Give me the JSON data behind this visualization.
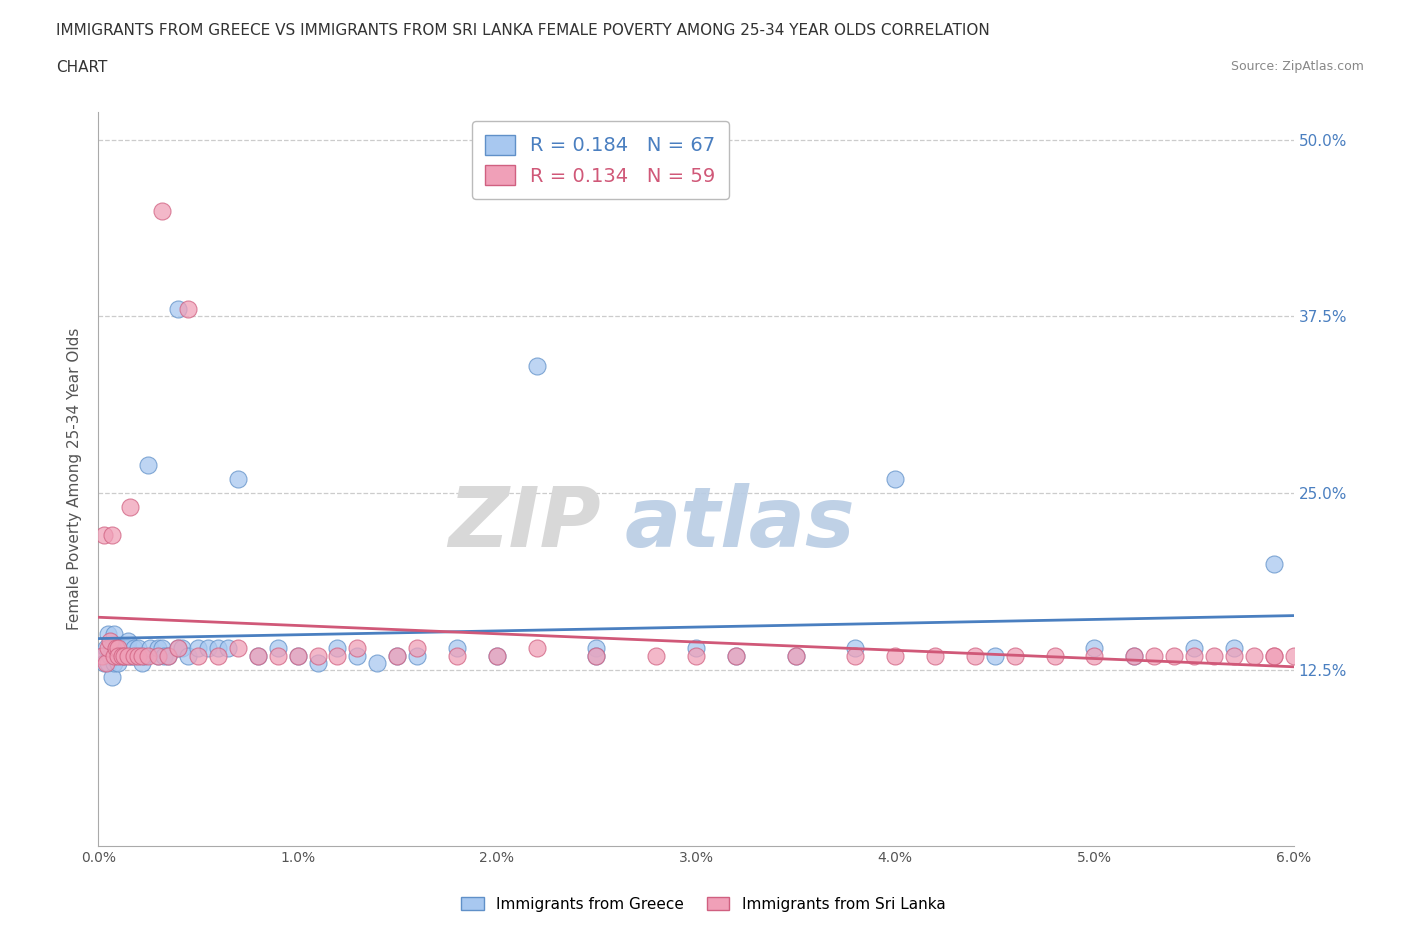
{
  "title_line1": "IMMIGRANTS FROM GREECE VS IMMIGRANTS FROM SRI LANKA FEMALE POVERTY AMONG 25-34 YEAR OLDS CORRELATION",
  "title_line2": "CHART",
  "source": "Source: ZipAtlas.com",
  "ylabel": "Female Poverty Among 25-34 Year Olds",
  "xlim": [
    0.0,
    0.06
  ],
  "ylim": [
    0.0,
    0.52
  ],
  "yticks": [
    0.0,
    0.125,
    0.25,
    0.375,
    0.5
  ],
  "ytick_labels": [
    "",
    "12.5%",
    "25.0%",
    "37.5%",
    "50.0%"
  ],
  "xticks": [
    0.0,
    0.01,
    0.02,
    0.03,
    0.04,
    0.05,
    0.06
  ],
  "xtick_labels": [
    "0.0%",
    "1.0%",
    "2.0%",
    "3.0%",
    "4.0%",
    "5.0%",
    "6.0%"
  ],
  "greece_color": "#a8c8f0",
  "sri_lanka_color": "#f0a0b8",
  "greece_edge_color": "#6090c8",
  "sri_lanka_edge_color": "#d06080",
  "greece_line_color": "#4a7fc0",
  "sri_lanka_line_color": "#d05878",
  "R_greece": 0.184,
  "N_greece": 67,
  "R_sri_lanka": 0.134,
  "N_sri_lanka": 59,
  "greece_x": [
    0.0002,
    0.0003,
    0.0004,
    0.0005,
    0.0005,
    0.0006,
    0.0007,
    0.0007,
    0.0008,
    0.0008,
    0.0009,
    0.001,
    0.001,
    0.001,
    0.0012,
    0.0013,
    0.0014,
    0.0015,
    0.0015,
    0.0016,
    0.0017,
    0.0018,
    0.002,
    0.002,
    0.0022,
    0.0023,
    0.0025,
    0.0026,
    0.003,
    0.003,
    0.0032,
    0.0033,
    0.0035,
    0.004,
    0.004,
    0.0042,
    0.0045,
    0.005,
    0.0055,
    0.006,
    0.0065,
    0.007,
    0.008,
    0.009,
    0.01,
    0.011,
    0.012,
    0.013,
    0.014,
    0.015,
    0.016,
    0.018,
    0.02,
    0.022,
    0.025,
    0.025,
    0.03,
    0.032,
    0.035,
    0.038,
    0.04,
    0.045,
    0.05,
    0.052,
    0.055,
    0.057,
    0.059
  ],
  "greece_y": [
    0.135,
    0.13,
    0.14,
    0.13,
    0.15,
    0.135,
    0.14,
    0.12,
    0.13,
    0.15,
    0.14,
    0.135,
    0.13,
    0.14,
    0.14,
    0.135,
    0.14,
    0.14,
    0.145,
    0.135,
    0.135,
    0.14,
    0.135,
    0.14,
    0.13,
    0.135,
    0.27,
    0.14,
    0.135,
    0.14,
    0.14,
    0.135,
    0.135,
    0.38,
    0.14,
    0.14,
    0.135,
    0.14,
    0.14,
    0.14,
    0.14,
    0.26,
    0.135,
    0.14,
    0.135,
    0.13,
    0.14,
    0.135,
    0.13,
    0.135,
    0.135,
    0.14,
    0.135,
    0.34,
    0.14,
    0.135,
    0.14,
    0.135,
    0.135,
    0.14,
    0.26,
    0.135,
    0.14,
    0.135,
    0.14,
    0.14,
    0.2
  ],
  "sri_lanka_x": [
    0.0002,
    0.0003,
    0.0004,
    0.0005,
    0.0006,
    0.0007,
    0.0008,
    0.0009,
    0.001,
    0.001,
    0.0012,
    0.0013,
    0.0015,
    0.0016,
    0.0018,
    0.002,
    0.0022,
    0.0025,
    0.003,
    0.0032,
    0.0035,
    0.004,
    0.0045,
    0.005,
    0.006,
    0.007,
    0.008,
    0.009,
    0.01,
    0.011,
    0.012,
    0.013,
    0.015,
    0.016,
    0.018,
    0.02,
    0.022,
    0.025,
    0.028,
    0.03,
    0.032,
    0.035,
    0.038,
    0.04,
    0.042,
    0.044,
    0.046,
    0.048,
    0.05,
    0.052,
    0.053,
    0.054,
    0.055,
    0.056,
    0.057,
    0.058,
    0.059,
    0.059,
    0.06
  ],
  "sri_lanka_y": [
    0.135,
    0.22,
    0.13,
    0.14,
    0.145,
    0.22,
    0.135,
    0.14,
    0.14,
    0.135,
    0.135,
    0.135,
    0.135,
    0.24,
    0.135,
    0.135,
    0.135,
    0.135,
    0.135,
    0.45,
    0.135,
    0.14,
    0.38,
    0.135,
    0.135,
    0.14,
    0.135,
    0.135,
    0.135,
    0.135,
    0.135,
    0.14,
    0.135,
    0.14,
    0.135,
    0.135,
    0.14,
    0.135,
    0.135,
    0.135,
    0.135,
    0.135,
    0.135,
    0.135,
    0.135,
    0.135,
    0.135,
    0.135,
    0.135,
    0.135,
    0.135,
    0.135,
    0.135,
    0.135,
    0.135,
    0.135,
    0.135,
    0.135,
    0.135
  ]
}
